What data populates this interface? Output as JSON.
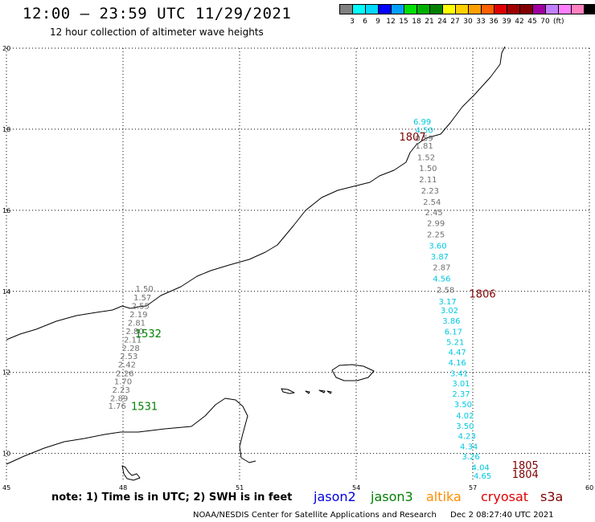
{
  "header": {
    "title": "12:00 — 23:59 UTC 11/29/2021",
    "subtitle": "12 hour collection of altimeter wave heights"
  },
  "scale": {
    "colors": [
      "#808080",
      "#00ffff",
      "#00d8ff",
      "#0000ff",
      "#00a0ff",
      "#00e000",
      "#00b000",
      "#008000",
      "#ffff00",
      "#ffd000",
      "#ffa000",
      "#ff6000",
      "#e00000",
      "#a00000",
      "#800000",
      "#a000a0",
      "#c080ff",
      "#ff80ff",
      "#ff80c0",
      "#000000"
    ],
    "labels": [
      "3",
      "6",
      "9",
      "12",
      "15",
      "18",
      "21",
      "24",
      "27",
      "30",
      "33",
      "36",
      "39",
      "42",
      "45",
      "70"
    ],
    "unit": "(ft)"
  },
  "map": {
    "lat_labels": [
      "20",
      "18",
      "16",
      "14",
      "12",
      "10"
    ],
    "lat_values": [
      20,
      18,
      16,
      14,
      12,
      10
    ],
    "lon_labels": [
      "45",
      "48",
      "51",
      "54",
      "57",
      "60"
    ],
    "lon_values": [
      45,
      48,
      51,
      54,
      57,
      60
    ]
  },
  "tracks": [
    {
      "name": "1807",
      "color": "#800000",
      "lon": 55.45,
      "lat": 17.72,
      "vals": [
        {
          "v": "6.99",
          "c": "#00c8e0",
          "lat": 18.12,
          "lon": 55.7
        },
        {
          "v": "4.50",
          "c": "#00c8e0",
          "lat": 17.91,
          "lon": 55.75
        },
        {
          "v": "0.59",
          "c": "#707070",
          "lat": 17.71,
          "lon": 55.75
        },
        {
          "v": "1.81",
          "c": "#707070",
          "lat": 17.52,
          "lon": 55.75
        },
        {
          "v": "1.52",
          "c": "#707070",
          "lat": 17.24,
          "lon": 55.8
        },
        {
          "v": "1.50",
          "c": "#707070",
          "lat": 16.97,
          "lon": 55.85
        },
        {
          "v": "2.11",
          "c": "#707070",
          "lat": 16.69,
          "lon": 55.85
        },
        {
          "v": "2.23",
          "c": "#707070",
          "lat": 16.41,
          "lon": 55.9
        },
        {
          "v": "2.54",
          "c": "#707070",
          "lat": 16.14,
          "lon": 55.95
        },
        {
          "v": "2.45",
          "c": "#707070",
          "lat": 15.88,
          "lon": 56.0
        },
        {
          "v": "2.99",
          "c": "#707070",
          "lat": 15.61,
          "lon": 56.05
        },
        {
          "v": "2.25",
          "c": "#707070",
          "lat": 15.33,
          "lon": 56.05
        },
        {
          "v": "3.60",
          "c": "#00c8e0",
          "lat": 15.06,
          "lon": 56.1
        },
        {
          "v": "3.87",
          "c": "#00c8e0",
          "lat": 14.79,
          "lon": 56.15
        },
        {
          "v": "2.87",
          "c": "#707070",
          "lat": 14.52,
          "lon": 56.2
        },
        {
          "v": "4.56",
          "c": "#00c8e0",
          "lat": 14.24,
          "lon": 56.2
        },
        {
          "v": "2.58",
          "c": "#707070",
          "lat": 13.97,
          "lon": 56.3
        }
      ]
    },
    {
      "name": "1806",
      "color": "#800000",
      "lon": 57.25,
      "lat": 13.85,
      "vals": [
        {
          "v": "3.17",
          "c": "#00c8e0",
          "lat": 13.68,
          "lon": 56.35
        },
        {
          "v": "3.02",
          "c": "#00c8e0",
          "lat": 13.46,
          "lon": 56.4
        },
        {
          "v": "3.86",
          "c": "#00c8e0",
          "lat": 13.2,
          "lon": 56.45
        },
        {
          "v": "6.17",
          "c": "#00c8e0",
          "lat": 12.94,
          "lon": 56.5
        },
        {
          "v": "5.21",
          "c": "#00c8e0",
          "lat": 12.68,
          "lon": 56.55
        },
        {
          "v": "4.47",
          "c": "#00c8e0",
          "lat": 12.43,
          "lon": 56.6
        },
        {
          "v": "4.16",
          "c": "#00c8e0",
          "lat": 12.17,
          "lon": 56.6
        },
        {
          "v": "3.41",
          "c": "#00c8e0",
          "lat": 11.91,
          "lon": 56.65
        },
        {
          "v": "3.01",
          "c": "#00c8e0",
          "lat": 11.66,
          "lon": 56.7
        },
        {
          "v": "2.37",
          "c": "#00c8e0",
          "lat": 11.4,
          "lon": 56.7
        },
        {
          "v": "3.50",
          "c": "#00c8e0",
          "lat": 11.14,
          "lon": 56.75
        },
        {
          "v": "4.02",
          "c": "#00c8e0",
          "lat": 10.87,
          "lon": 56.8
        },
        {
          "v": "3.50",
          "c": "#00c8e0",
          "lat": 10.61,
          "lon": 56.8
        },
        {
          "v": "4.23",
          "c": "#00c8e0",
          "lat": 10.36,
          "lon": 56.85
        },
        {
          "v": "4.34",
          "c": "#00c8e0",
          "lat": 10.1,
          "lon": 56.9
        },
        {
          "v": "3.26",
          "c": "#00c8e0",
          "lat": 9.85,
          "lon": 56.95
        }
      ]
    },
    {
      "name": "1805",
      "color": "#800000",
      "lon": 58.35,
      "lat": 9.62,
      "vals": [
        {
          "v": "4.04",
          "c": "#00c8e0",
          "lat": 9.59,
          "lon": 57.2
        }
      ]
    },
    {
      "name": "1804",
      "color": "#800000",
      "lon": 58.35,
      "lat": 9.4,
      "vals": [
        {
          "v": "4.65",
          "c": "#00c8e0",
          "lat": 9.38,
          "lon": 57.25
        }
      ]
    },
    {
      "name": "1532",
      "color": "#008000",
      "lon": 48.65,
      "lat": 12.87,
      "vals": [
        {
          "v": "1.50",
          "c": "#707070",
          "lat": 14.0,
          "lon": 48.55
        },
        {
          "v": "1.57",
          "c": "#707070",
          "lat": 13.78,
          "lon": 48.5
        },
        {
          "v": "2.55",
          "c": "#707070",
          "lat": 13.57,
          "lon": 48.45
        },
        {
          "v": "2.19",
          "c": "#707070",
          "lat": 13.36,
          "lon": 48.4
        },
        {
          "v": "2.81",
          "c": "#707070",
          "lat": 13.15,
          "lon": 48.35
        },
        {
          "v": "2.80",
          "c": "#707070",
          "lat": 12.95,
          "lon": 48.3
        },
        {
          "v": "2.11",
          "c": "#707070",
          "lat": 12.74,
          "lon": 48.25
        },
        {
          "v": "2.28",
          "c": "#707070",
          "lat": 12.53,
          "lon": 48.2
        },
        {
          "v": "2.53",
          "c": "#707070",
          "lat": 12.33,
          "lon": 48.15
        },
        {
          "v": "2.42",
          "c": "#707070",
          "lat": 12.12,
          "lon": 48.1
        },
        {
          "v": "2.26",
          "c": "#707070",
          "lat": 11.91,
          "lon": 48.05
        },
        {
          "v": "1.70",
          "c": "#707070",
          "lat": 11.71,
          "lon": 48.0
        },
        {
          "v": "2.23",
          "c": "#707070",
          "lat": 11.5,
          "lon": 47.95
        },
        {
          "v": "2.89",
          "c": "#707070",
          "lat": 11.29,
          "lon": 47.9
        },
        {
          "v": "1.76",
          "c": "#707070",
          "lat": 11.1,
          "lon": 47.85
        }
      ]
    },
    {
      "name": "1531",
      "color": "#008000",
      "lon": 48.55,
      "lat": 11.07,
      "vals": []
    }
  ],
  "note": "note: 1) Time is in UTC; 2) SWH is in feet",
  "satellites": [
    {
      "name": "jason2",
      "color": "#0000e0"
    },
    {
      "name": "jason3",
      "color": "#008000"
    },
    {
      "name": "altika",
      "color": "#ff8c00"
    },
    {
      "name": "cryosat",
      "color": "#e00000"
    },
    {
      "name": "s3a",
      "color": "#800000"
    }
  ],
  "footer": "NOAA/NESDIS Center for Satellite Applications and Research",
  "timestamp": "Dec  2 08:27:40 UTC 2021"
}
